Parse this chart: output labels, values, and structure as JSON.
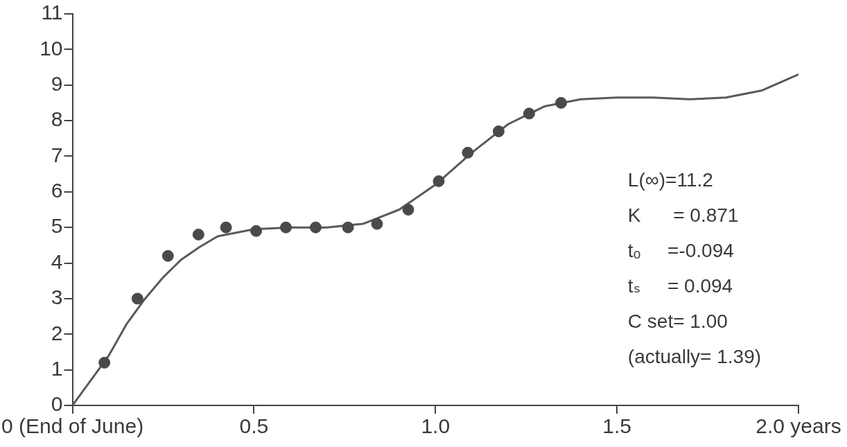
{
  "chart_data": {
    "type": "scatter",
    "xlim": [
      0,
      2
    ],
    "ylim": [
      0,
      11
    ],
    "xticks": [
      {
        "value": 0,
        "label": "0 (End of June)"
      },
      0.5,
      {
        "value": 1,
        "label": "1.0"
      },
      {
        "value": 1.5,
        "label": "1.5"
      },
      {
        "value": 2,
        "label": "2.0 years"
      }
    ],
    "yticks": [
      0,
      1,
      2,
      3,
      4,
      5,
      6,
      7,
      8,
      9,
      10,
      11
    ],
    "grid": false,
    "legend": false,
    "marker": "circle",
    "series": [
      {
        "color": "#4a4a4a",
        "x": [
          0.088,
          0.179,
          0.263,
          0.347,
          0.423,
          0.506,
          0.588,
          0.67,
          0.759,
          0.839,
          0.925,
          1.009,
          1.089,
          1.174,
          1.258,
          1.346
        ],
        "values": [
          1.2,
          3.0,
          4.2,
          4.8,
          5.0,
          4.9,
          5.0,
          5.0,
          5.0,
          5.1,
          5.5,
          6.3,
          7.1,
          7.7,
          8.2,
          8.5
        ]
      },
      {
        "type": "line",
        "color": "#5a5a5a",
        "marker": "none",
        "x": [
          0,
          0.05,
          0.1,
          0.15,
          0.2,
          0.25,
          0.3,
          0.35,
          0.4,
          0.5,
          0.6,
          0.7,
          0.8,
          0.9,
          1.0,
          1.1,
          1.2,
          1.3,
          1.4,
          1.5,
          1.6,
          1.7,
          1.8,
          1.9,
          2.0
        ],
        "values": [
          0,
          0.7,
          1.4,
          2.3,
          3.0,
          3.6,
          4.1,
          4.45,
          4.75,
          4.95,
          5.0,
          5.0,
          5.1,
          5.5,
          6.2,
          7.1,
          7.9,
          8.4,
          8.6,
          8.65,
          8.65,
          8.6,
          8.65,
          8.85,
          9.3
        ]
      }
    ],
    "annotations": [
      "L(∞)=11.2",
      "K      = 0.871",
      "tₒ     =-0.094",
      "tₛ     = 0.094",
      "C set= 1.00",
      "(actually= 1.39)"
    ]
  }
}
